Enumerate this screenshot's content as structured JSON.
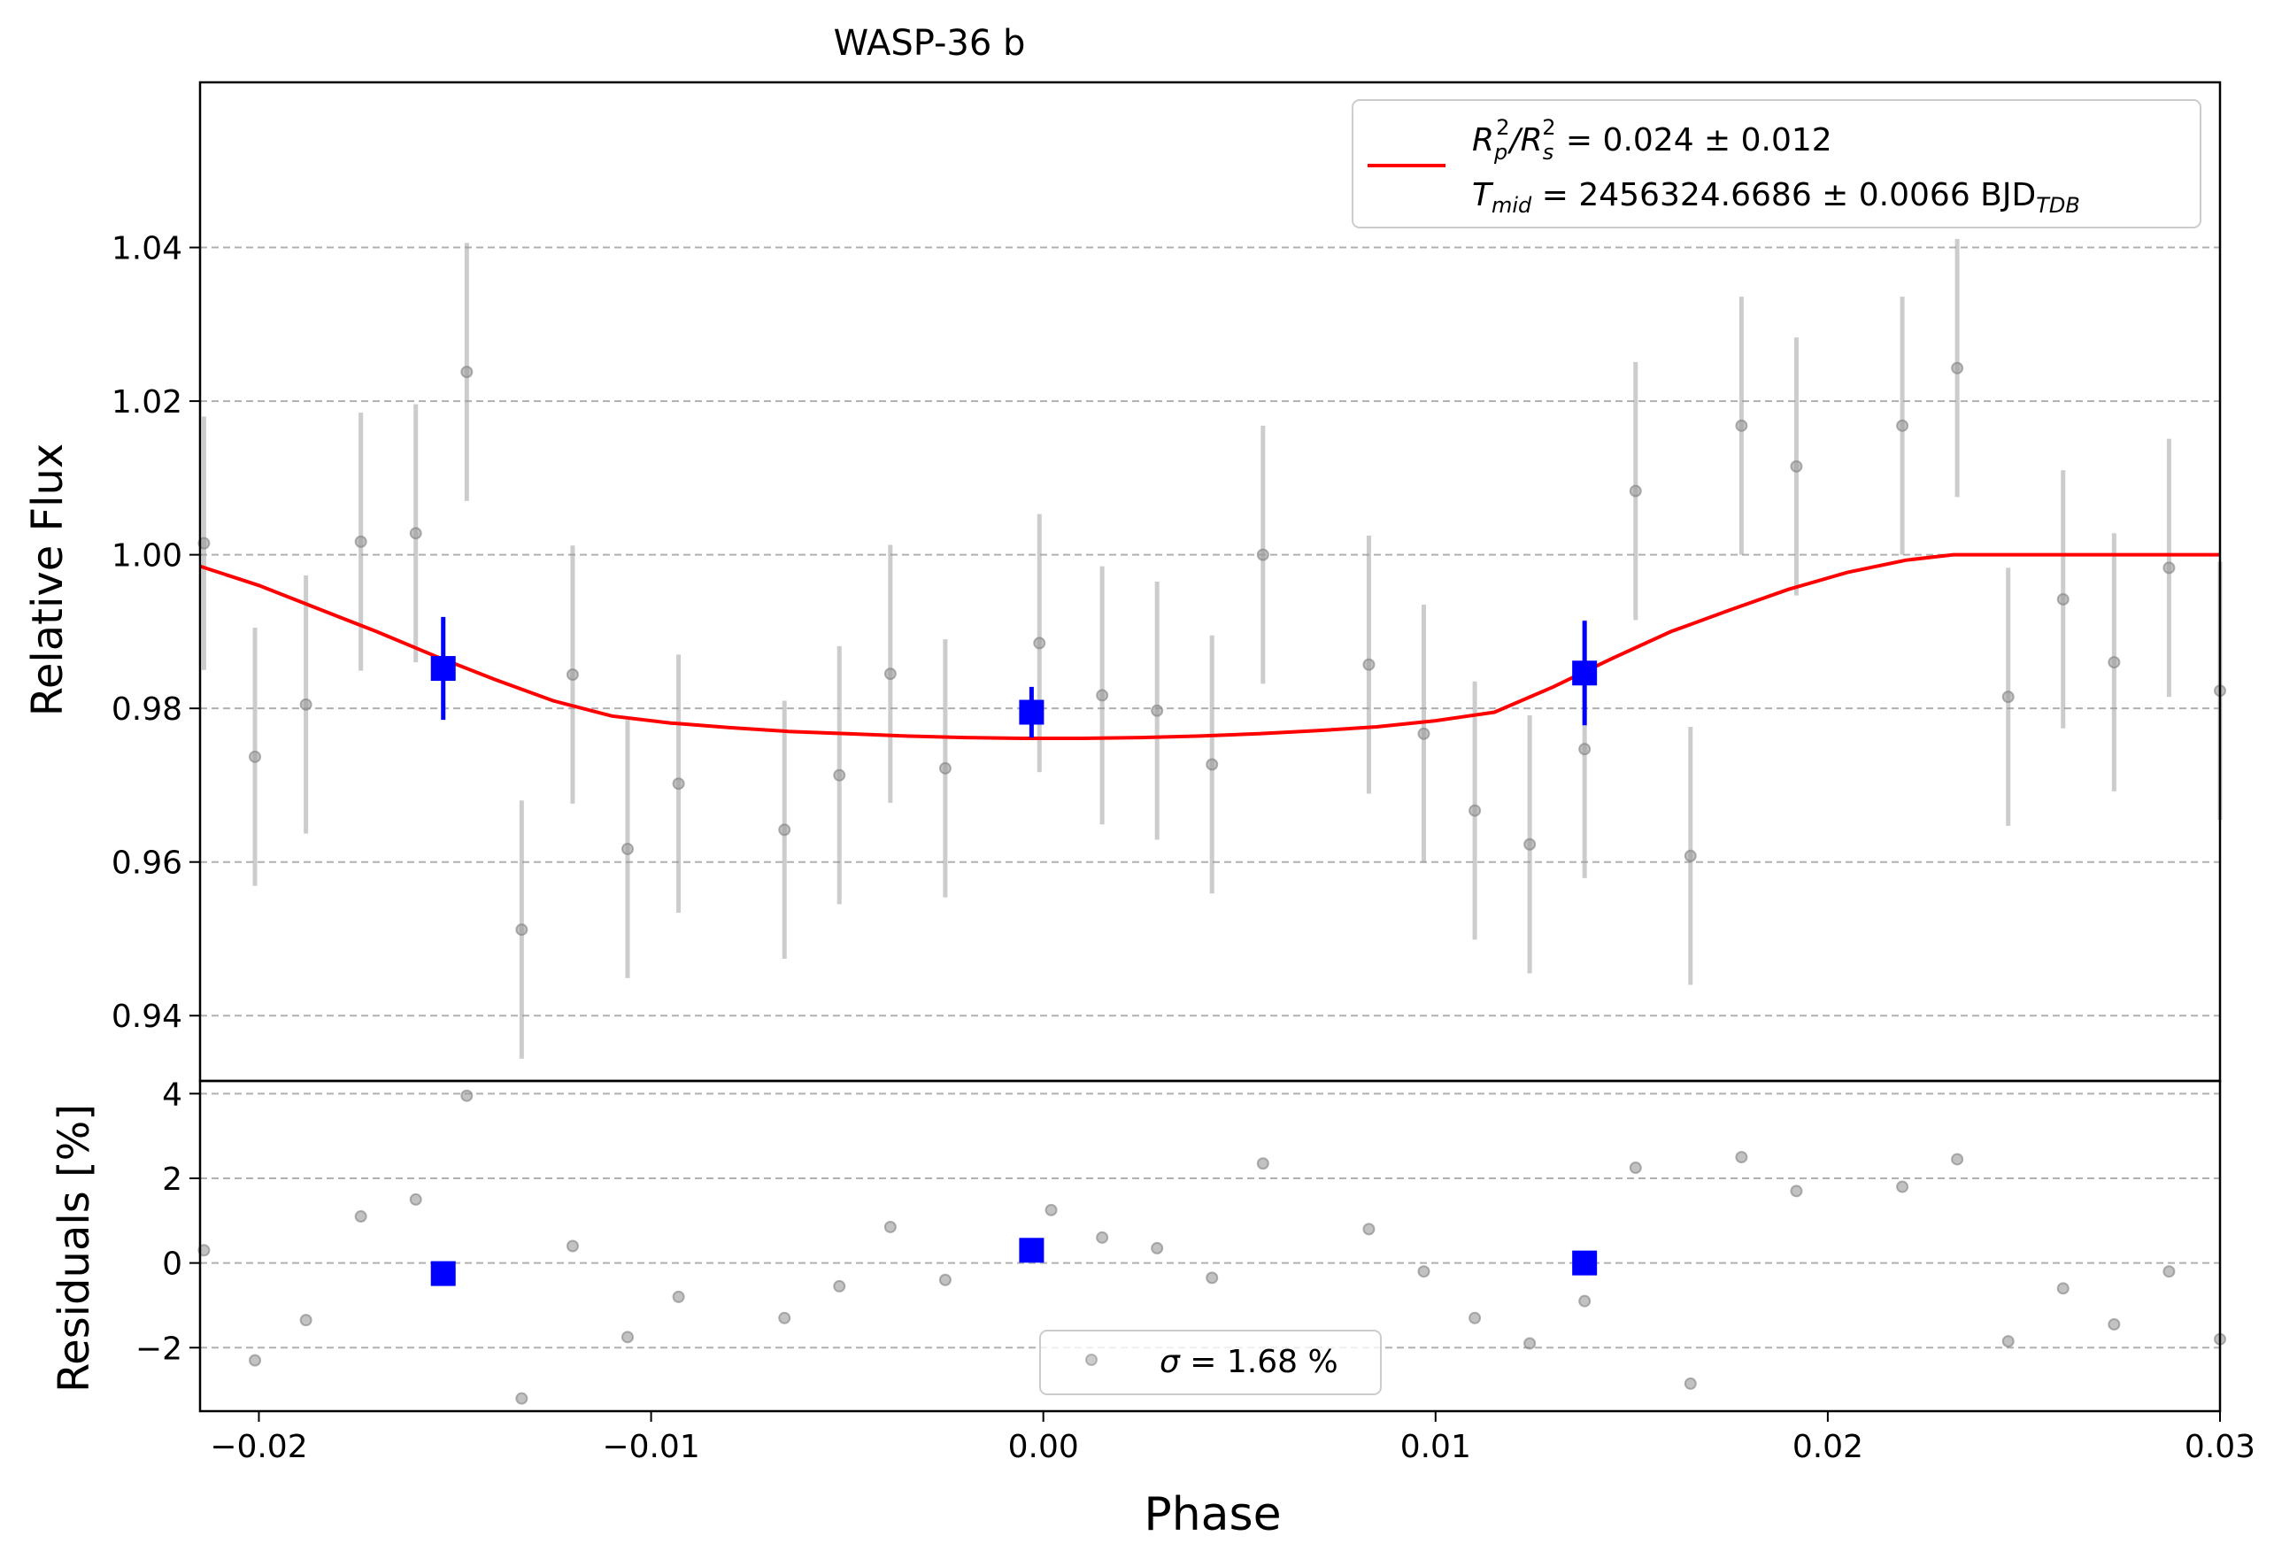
{
  "chart_data": [
    {
      "type": "scatter",
      "title": "WASP-36 b",
      "xlabel": "",
      "ylabel": "Relative Flux",
      "xlim": [
        -0.0215,
        0.03
      ],
      "ylim": [
        0.9315,
        1.0615
      ],
      "yticks": [
        0.94,
        0.96,
        0.98,
        1.0,
        1.02,
        1.04
      ],
      "ytick_labels": [
        "0.94",
        "0.96",
        "0.98",
        "1.00",
        "1.02",
        "1.04"
      ],
      "grid": "y-dashed",
      "legend_position": "top-right",
      "legend": {
        "rp_prefix": "R",
        "rp_sub": "p",
        "rp_sup": "2",
        "rs_prefix": "/R",
        "rs_sub": "s",
        "rs_sup": "2",
        "rp_value": " = 0.024 ± 0.012",
        "tmid_prefix": "T",
        "tmid_sub": "mid",
        "tmid_value": " = 2456324.6686 ± 0.0066 BJD",
        "tmid_unit_sub": "TDB"
      },
      "series": [
        {
          "type": "errorbar",
          "color": "#999999",
          "x": [
            -0.0214,
            -0.0201,
            -0.0188,
            -0.0174,
            -0.016,
            -0.0147,
            -0.0133,
            -0.012,
            -0.0106,
            -0.0093,
            -0.0066,
            -0.0052,
            -0.0039,
            -0.0025,
            -0.0001,
            0.0015,
            0.0029,
            0.0043,
            0.0056,
            0.0083,
            0.0097,
            0.011,
            0.0124,
            0.0138,
            0.0151,
            0.0165,
            0.0178,
            0.0192,
            0.0219,
            0.0233,
            0.0246,
            0.026,
            0.0273,
            0.0287,
            0.03
          ],
          "y": [
            1.0015,
            0.9737,
            0.9805,
            1.0017,
            1.0028,
            1.0238,
            0.9512,
            0.9844,
            0.9617,
            0.9702,
            0.9642,
            0.9713,
            0.9845,
            0.9722,
            0.9885,
            0.9817,
            0.9797,
            0.9727,
            1.0,
            0.9857,
            0.9767,
            0.9667,
            0.9623,
            0.9747,
            1.0083,
            0.9608,
            1.0168,
            1.0115,
            1.0168,
            1.0243,
            0.9815,
            0.9942,
            0.986,
            0.9983,
            0.9823
          ],
          "yerr": [
            0.0165,
            0.0168,
            0.0168,
            0.0168,
            0.0168,
            0.0168,
            0.0168,
            0.0168,
            0.0168,
            0.0168,
            0.0168,
            0.0168,
            0.0168,
            0.0168,
            0.0168,
            0.0168,
            0.0168,
            0.0168,
            0.0168,
            0.0168,
            0.0168,
            0.0168,
            0.0168,
            0.0168,
            0.0168,
            0.0168,
            0.0168,
            0.0168,
            0.0168,
            0.0168,
            0.0168,
            0.0168,
            0.0168,
            0.0168,
            0.0168
          ]
        },
        {
          "type": "binned",
          "color": "#0000ff",
          "x": [
            -0.0153,
            -0.0003,
            0.0138
          ],
          "y": [
            0.9852,
            0.9795,
            0.9846
          ],
          "yerr": [
            0.0067,
            0.0033,
            0.0068
          ]
        },
        {
          "type": "model",
          "color": "#ff0000",
          "x": [
            -0.0215,
            -0.02,
            -0.0185,
            -0.017,
            -0.0155,
            -0.014,
            -0.0125,
            -0.011,
            -0.0095,
            -0.008,
            -0.0065,
            -0.005,
            -0.0035,
            -0.002,
            -0.0005,
            0.001,
            0.0025,
            0.004,
            0.0055,
            0.007,
            0.0085,
            0.01,
            0.0115,
            0.013,
            0.0145,
            0.016,
            0.0175,
            0.019,
            0.0205,
            0.022,
            0.0232,
            0.025,
            0.03
          ],
          "y": [
            0.9985,
            0.996,
            0.993,
            0.99,
            0.9868,
            0.9838,
            0.981,
            0.979,
            0.9781,
            0.9775,
            0.977,
            0.9767,
            0.9764,
            0.9762,
            0.9761,
            0.9761,
            0.9762,
            0.9764,
            0.9767,
            0.9771,
            0.9776,
            0.9784,
            0.9795,
            0.9828,
            0.9865,
            0.99,
            0.9928,
            0.9955,
            0.9977,
            0.9993,
            1.0,
            1.0,
            1.0
          ]
        }
      ]
    },
    {
      "type": "scatter",
      "xlabel": "Phase",
      "ylabel": "Residuals [%]",
      "xlim": [
        -0.0215,
        0.03
      ],
      "ylim": [
        -3.5,
        4.3
      ],
      "yticks": [
        -2,
        0,
        2,
        4
      ],
      "ytick_labels": [
        "−2",
        "0",
        "2",
        "4"
      ],
      "xticks": [
        -0.02,
        -0.01,
        0.0,
        0.01,
        0.02,
        0.03
      ],
      "xtick_labels": [
        "−0.02",
        "−0.01",
        "0.00",
        "0.01",
        "0.02",
        "0.03"
      ],
      "grid": "y-dashed",
      "legend_position": "lower center",
      "legend": {
        "sigma_symbol": "σ",
        "sigma_text": " = 1.68 %"
      },
      "series": [
        {
          "type": "residuals",
          "color": "#999999",
          "x": [
            -0.0214,
            -0.0201,
            -0.0188,
            -0.0174,
            -0.016,
            -0.0147,
            -0.0133,
            -0.012,
            -0.0106,
            -0.0093,
            -0.0066,
            -0.0052,
            -0.0039,
            -0.0025,
            0.0002,
            0.0015,
            0.0029,
            0.0043,
            0.0056,
            0.0083,
            0.0097,
            0.011,
            0.0124,
            0.0138,
            0.0151,
            0.0165,
            0.0178,
            0.0192,
            0.0219,
            0.0233,
            0.0246,
            0.026,
            0.0273,
            0.0287,
            0.03
          ],
          "y": [
            0.3,
            -2.3,
            -1.35,
            1.1,
            1.5,
            3.95,
            -3.2,
            0.4,
            -1.75,
            -0.8,
            -1.3,
            -0.55,
            0.85,
            -0.4,
            1.25,
            0.6,
            0.35,
            -0.35,
            2.35,
            0.8,
            -0.2,
            -1.3,
            -1.9,
            -0.9,
            2.25,
            -2.85,
            2.5,
            1.7,
            1.8,
            2.45,
            -1.85,
            -0.6,
            -1.45,
            -0.2,
            -1.8
          ]
        },
        {
          "type": "binned",
          "color": "#0000ff",
          "x": [
            -0.0153,
            -0.0003,
            0.0138
          ],
          "y": [
            -0.25,
            0.3,
            0.0
          ]
        }
      ]
    }
  ]
}
